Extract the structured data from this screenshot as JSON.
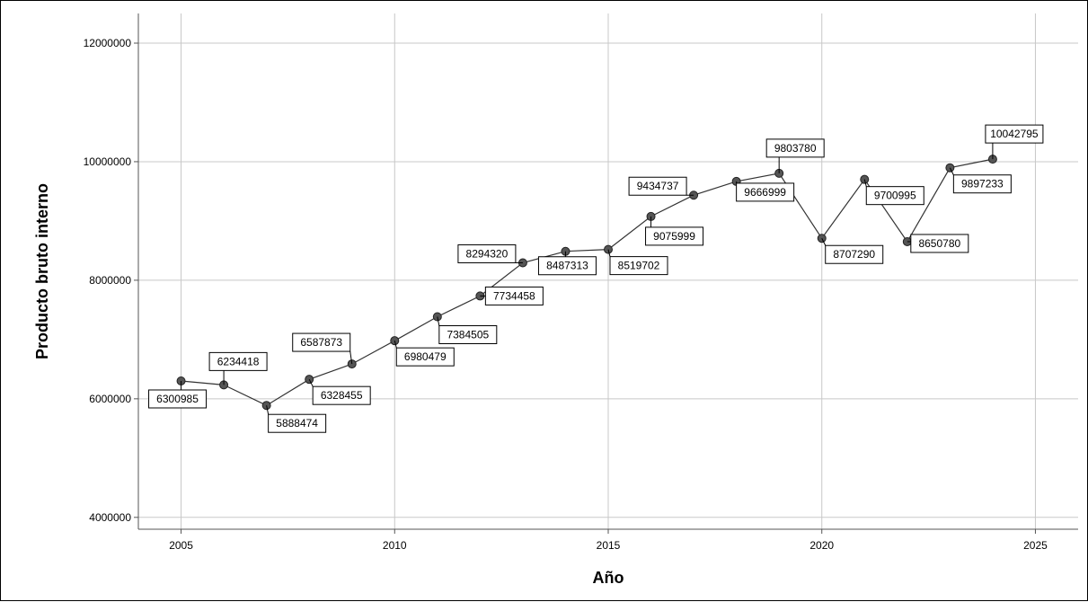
{
  "chart_data": {
    "type": "line",
    "title": "",
    "xlabel": "Año",
    "ylabel": "Producto bruto interno",
    "xlim": [
      2004,
      2026
    ],
    "ylim": [
      3800000,
      12500000
    ],
    "x_ticks": [
      2005,
      2010,
      2015,
      2020,
      2025
    ],
    "x_tick_labels": [
      "2005",
      "2010",
      "2015",
      "2020",
      "2025"
    ],
    "y_ticks": [
      4000000,
      6000000,
      8000000,
      10000000,
      12000000
    ],
    "y_tick_labels": [
      "4000000",
      "6000000",
      "8000000",
      "10000000",
      "12000000"
    ],
    "grid": true,
    "series": [
      {
        "x": [
          2005,
          2006,
          2007,
          2008,
          2009,
          2010,
          2011,
          2012,
          2013,
          2014,
          2015,
          2016,
          2017,
          2018,
          2019,
          2020,
          2021,
          2022,
          2023,
          2024
        ],
        "values": [
          6300985,
          6234418,
          5888474,
          6328455,
          6587873,
          6980479,
          7384505,
          7734458,
          8294320,
          8487313,
          8519702,
          9075999,
          9434737,
          9666999,
          9803780,
          8707290,
          9700995,
          8650780,
          9897233,
          10042795
        ],
        "labels": [
          "6300985",
          "6234418",
          "5888474",
          "6328455",
          "6587873",
          "6980479",
          "7384505",
          "7734458",
          "8294320",
          "8487313",
          "8519702",
          "9075999",
          "9434737",
          "9666999",
          "9803780",
          "8707290",
          "9700995",
          "8650780",
          "9897233",
          "10042795"
        ],
        "marker_color": "#555555",
        "line_color": "#333333"
      }
    ]
  }
}
